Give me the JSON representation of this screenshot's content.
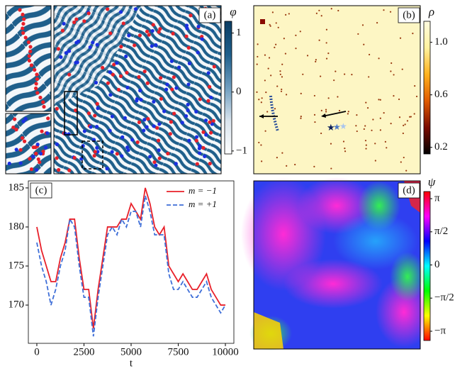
{
  "chart_data": [
    {
      "type": "heatmap",
      "panel_label": "(a)",
      "colorbar_label": "φ",
      "colormap": [
        "#ffffff",
        "#d9e4ee",
        "#6f9dbf",
        "#1f5f8b",
        "#0b3d63"
      ],
      "clim": [
        -1.05,
        1.2
      ],
      "cticks": [
        1,
        0,
        {
          "value": -1,
          "label": "−1"
        }
      ]
    },
    {
      "type": "heatmap",
      "panel_label": "(b)",
      "colorbar_label": "ρ",
      "colormap": [
        "#000000",
        "#7a0a00",
        "#e05a00",
        "#ffb21e",
        "#fff2a0",
        "#fffbe0"
      ],
      "clim": [
        0.15,
        1.16
      ],
      "cticks": [
        {
          "value": 1,
          "label": "1.0"
        },
        0.6,
        0.2
      ]
    },
    {
      "type": "line",
      "panel_label": "(c)",
      "xlabel": "t",
      "x": [
        0,
        250,
        500,
        750,
        1000,
        1250,
        1500,
        1750,
        2000,
        2250,
        2500,
        2750,
        3000,
        3250,
        3500,
        3750,
        4000,
        4250,
        4500,
        4750,
        5000,
        5250,
        5500,
        5750,
        6000,
        6250,
        6500,
        6750,
        7000,
        7250,
        7500,
        7750,
        8000,
        8250,
        8500,
        8750,
        9000,
        9250,
        9500,
        9750,
        10000
      ],
      "series": [
        {
          "name": "m = −1",
          "color": "#e8202a",
          "dash": false,
          "values": [
            180,
            177,
            175,
            173,
            173,
            176,
            178,
            181,
            181,
            176,
            172,
            172,
            167,
            172,
            176,
            180,
            180,
            180,
            181,
            181,
            183,
            182,
            181,
            185,
            183,
            180,
            179,
            180,
            175,
            174,
            173,
            174,
            173,
            172,
            172,
            173,
            174,
            172,
            171,
            170,
            170
          ]
        },
        {
          "name": "m = +1",
          "color": "#3f6fd8",
          "dash": true,
          "values": [
            178,
            175,
            173,
            170,
            172,
            175,
            177,
            181,
            180,
            175,
            171,
            171,
            166,
            171,
            175,
            179,
            180,
            179,
            181,
            180,
            182,
            182,
            180,
            184,
            182,
            179,
            179,
            179,
            174,
            172,
            172,
            173,
            172,
            171,
            171,
            172,
            173,
            171,
            170,
            169,
            170
          ]
        }
      ],
      "xlim": [
        -450,
        10450
      ],
      "xticks": [
        0,
        2500,
        5000,
        7500,
        10000
      ],
      "ylim": [
        165.1,
        185.9
      ],
      "yticks": [
        170,
        175,
        180,
        185
      ],
      "legend": "upper right"
    },
    {
      "type": "heatmap",
      "panel_label": "(d)",
      "colorbar_label": "ψ",
      "colormap": [
        "#ff0000",
        "#ffff00",
        "#00ff00",
        "#00ffff",
        "#0000ff",
        "#ff00ff",
        "#ff0000"
      ],
      "clim": [
        -3.58,
        3.48
      ],
      "cticks": [
        {
          "value": 3.14159,
          "label": "π"
        },
        {
          "value": 1.5708,
          "label": "π/2"
        },
        0,
        {
          "value": -1.5708,
          "label": "−π/2"
        },
        {
          "value": -3.14159,
          "label": "−π"
        }
      ]
    }
  ]
}
